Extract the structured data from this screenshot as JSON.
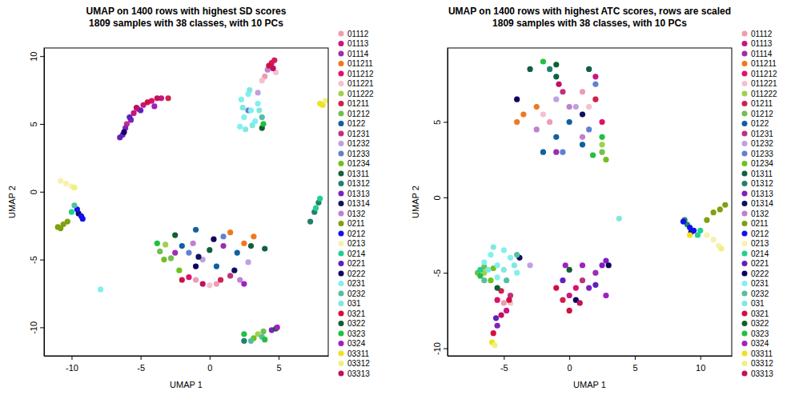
{
  "chart_data": [
    {
      "type": "scatter",
      "title": [
        "UMAP on 1400 rows with highest SD scores",
        "1809 samples with 38 classes, with 10 PCs"
      ],
      "x_label": "UMAP 1",
      "y_label": "UMAP 2",
      "xlim": [
        -12,
        8.6
      ],
      "ylim": [
        -12.1,
        10.6
      ],
      "xticks": [
        -10,
        -5,
        0,
        5
      ],
      "yticks": [
        -10,
        -5,
        0,
        5,
        10
      ],
      "legend": "right",
      "series": [
        {
          "name": "01112",
          "color": "#ef9bb0",
          "x": [
            -1,
            0.5,
            4
          ],
          "y": [
            -6.5,
            -6.8,
            8.5
          ]
        },
        {
          "name": "01113",
          "color": "#c71585",
          "x": [
            -5.5,
            -4.8,
            -3.5
          ],
          "y": [
            5.8,
            6.4,
            6.9
          ]
        },
        {
          "name": "01114",
          "color": "#9b2fae",
          "x": [
            -2.5,
            1
          ],
          "y": [
            -4.5,
            -4
          ]
        },
        {
          "name": "011211",
          "color": "#f07820",
          "x": [
            2.5,
            3.2,
            1.5
          ],
          "y": [
            -3.8,
            -3.3,
            -3
          ]
        },
        {
          "name": "011212",
          "color": "#e0106a",
          "x": [
            -4.2,
            4.5,
            -1.5
          ],
          "y": [
            6.7,
            9.5,
            -6.3
          ]
        },
        {
          "name": "011221",
          "color": "#f5c0d0",
          "x": [
            3.8,
            0,
            4.8
          ],
          "y": [
            8.2,
            -6.9,
            8.8
          ]
        },
        {
          "name": "011222",
          "color": "#a0d050",
          "x": [
            3.5,
            -3.2
          ],
          "y": [
            -10.5,
            -3.9
          ]
        },
        {
          "name": "01211",
          "color": "#d02050",
          "x": [
            -3,
            4.7,
            0.8
          ],
          "y": [
            6.9,
            9.7,
            -6.5
          ]
        },
        {
          "name": "01212",
          "color": "#70c050",
          "x": [
            -3.6,
            -2.8,
            3.9
          ],
          "y": [
            -4.4,
            -4.9,
            -10.3
          ]
        },
        {
          "name": "0122",
          "color": "#1060a0",
          "x": [
            -1,
            -2,
            0.5,
            2
          ],
          "y": [
            -2.8,
            -4,
            -5.5,
            -4.5
          ]
        },
        {
          "name": "01231",
          "color": "#c03080",
          "x": [
            -6,
            -5.2,
            1.5
          ],
          "y": [
            5,
            6.1,
            -6.2
          ]
        },
        {
          "name": "01232",
          "color": "#c0a0e0",
          "x": [
            3.5,
            -0.5,
            2.8
          ],
          "y": [
            7.3,
            -5,
            -5.2
          ]
        },
        {
          "name": "01233",
          "color": "#6080d0",
          "x": [
            1,
            2.8,
            -1.5
          ],
          "y": [
            -3.3,
            6,
            -4.5
          ]
        },
        {
          "name": "01234",
          "color": "#70c020",
          "x": [
            -3.3,
            3.2,
            -2.2
          ],
          "y": [
            -5,
            -10.8,
            -5.8
          ]
        },
        {
          "name": "01311",
          "color": "#106040",
          "x": [
            4,
            3,
            0
          ],
          "y": [
            -4.2,
            -4,
            -4.3
          ]
        },
        {
          "name": "01312",
          "color": "#208070",
          "x": [
            7.6,
            7.9,
            2.5,
            7.3
          ],
          "y": [
            -1.5,
            -0.8,
            -11,
            -2.2
          ]
        },
        {
          "name": "01313",
          "color": "#8020c0",
          "x": [
            -6.3,
            -6.1,
            4.5,
            -5.7
          ],
          "y": [
            4.2,
            4.7,
            -10.2,
            5.3
          ]
        },
        {
          "name": "01314",
          "color": "#101060",
          "x": [
            -9.5,
            -0.8,
            1.8
          ],
          "y": [
            -1.6,
            -4.8,
            -5.8
          ]
        },
        {
          "name": "0132",
          "color": "#c080d0",
          "x": [
            4.2,
            2.2,
            -1.2
          ],
          "y": [
            9,
            -6.5,
            -3.8
          ]
        },
        {
          "name": "0211",
          "color": "#80a010",
          "x": [
            -11,
            -10.6,
            -10.3,
            -10.8
          ],
          "y": [
            -2.6,
            -2.4,
            -2.2,
            -2.7
          ]
        },
        {
          "name": "0212",
          "color": "#1010f0",
          "x": [
            -9.3,
            -9.6,
            -9.2
          ],
          "y": [
            -1.8,
            -1.3,
            -2
          ]
        },
        {
          "name": "0213",
          "color": "#f8f0b0",
          "x": [
            -10.8,
            -10.4,
            -10
          ],
          "y": [
            0.8,
            0.6,
            0.4
          ]
        },
        {
          "name": "0214",
          "color": "#20d090",
          "x": [
            -10,
            7.7,
            8
          ],
          "y": [
            -1.5,
            -1.2,
            -0.5
          ]
        },
        {
          "name": "0221",
          "color": "#6020c0",
          "x": [
            -6.5,
            -5.8,
            -5
          ],
          "y": [
            4,
            5.5,
            6
          ]
        },
        {
          "name": "0222",
          "color": "#100060",
          "x": [
            -6.2,
            -1,
            0.3
          ],
          "y": [
            4.4,
            -5.5,
            -3.5
          ]
        },
        {
          "name": "0231",
          "color": "#80f0f0",
          "x": [
            2.2,
            2.5,
            3,
            2.3,
            3.3,
            2.8,
            -7.9,
            3.5
          ],
          "y": [
            4.8,
            5.5,
            6,
            6.8,
            5.2,
            7.2,
            -7.2,
            6.5
          ]
        },
        {
          "name": "0232",
          "color": "#50c0a0",
          "x": [
            3,
            3.8,
            -9.8,
            3.8
          ],
          "y": [
            -11,
            -10.7,
            -1,
            5.5
          ]
        },
        {
          "name": "031",
          "color": "#80e8e0",
          "x": [
            2.6,
            3.1,
            2.4,
            3.6,
            2.9
          ],
          "y": [
            4.6,
            4.9,
            6.2,
            6,
            7.5
          ]
        },
        {
          "name": "0321",
          "color": "#d01040",
          "x": [
            -4.5,
            4.3,
            -2
          ],
          "y": [
            6.6,
            9.3,
            -6.5
          ]
        },
        {
          "name": "0322",
          "color": "#106030",
          "x": [
            -2.5,
            4.8,
            3.8
          ],
          "y": [
            -3.2,
            -10.1,
            4.7
          ]
        },
        {
          "name": "0323",
          "color": "#20c040",
          "x": [
            3.9,
            2.5,
            4,
            -3.8
          ],
          "y": [
            5,
            -10.5,
            -10.9,
            -3.8
          ]
        },
        {
          "name": "0324",
          "color": "#a020c0",
          "x": [
            -4,
            4.9,
            2.5
          ],
          "y": [
            6.3,
            -10,
            -6.8
          ]
        },
        {
          "name": "03311",
          "color": "#f0e020",
          "x": [
            8.2,
            8
          ],
          "y": [
            6.4,
            6.5
          ]
        },
        {
          "name": "03312",
          "color": "#f0f080",
          "x": [
            8.4,
            -9.8
          ],
          "y": [
            6.7,
            0.3
          ]
        },
        {
          "name": "03313",
          "color": "#c01060",
          "x": [
            -5.3,
            -3.8,
            4.6,
            -0.5
          ],
          "y": [
            6.2,
            6.9,
            9.1,
            -6.8
          ]
        }
      ]
    },
    {
      "type": "scatter",
      "title": [
        "UMAP on 1400 rows with highest ATC scores, rows are scaled",
        "1809 samples with 38 classes, with 10 PCs"
      ],
      "x_label": "UMAP 1",
      "y_label": "UMAP 2",
      "xlim": [
        -9.3,
        12.4
      ],
      "ylim": [
        -10.5,
        9.9
      ],
      "xticks": [
        -5,
        0,
        5,
        10
      ],
      "yticks": [
        -10,
        -5,
        0,
        5
      ],
      "legend": "right",
      "series": [
        {
          "name": "01112",
          "color": "#ef9bb0",
          "x": [
            -5,
            -1.5,
            1
          ],
          "y": [
            -7,
            5,
            7
          ]
        },
        {
          "name": "01113",
          "color": "#c71585",
          "x": [
            0,
            -4.8,
            2
          ],
          "y": [
            -6.5,
            -7.5,
            8
          ]
        },
        {
          "name": "01114",
          "color": "#9b2fae",
          "x": [
            2,
            -1
          ],
          "y": [
            -5,
            3
          ]
        },
        {
          "name": "011211",
          "color": "#f07820",
          "x": [
            -3.5,
            -4,
            -2.5
          ],
          "y": [
            5.5,
            5,
            6
          ]
        },
        {
          "name": "011212",
          "color": "#e0106a",
          "x": [
            -5.5,
            0.5,
            2.5
          ],
          "y": [
            -6.8,
            -6,
            5
          ]
        },
        {
          "name": "011221",
          "color": "#f5c0d0",
          "x": [
            -2,
            -4.5,
            1.5
          ],
          "y": [
            5.5,
            -7,
            6
          ]
        },
        {
          "name": "011222",
          "color": "#a0d050",
          "x": [
            2.5,
            -6.5
          ],
          "y": [
            3.5,
            -5
          ]
        },
        {
          "name": "01211",
          "color": "#d02050",
          "x": [
            -0.5,
            -5.2,
            2
          ],
          "y": [
            -6.8,
            -6.2,
            6.5
          ]
        },
        {
          "name": "01212",
          "color": "#70c050",
          "x": [
            -7,
            -6.5,
            2.5
          ],
          "y": [
            -5,
            -4.6,
            3
          ]
        },
        {
          "name": "0122",
          "color": "#1060a0",
          "x": [
            -1,
            0,
            1,
            -2
          ],
          "y": [
            4,
            5,
            3.5,
            3
          ]
        },
        {
          "name": "01231",
          "color": "#c03080",
          "x": [
            1,
            -0.5,
            -4.5
          ],
          "y": [
            -5.5,
            7,
            -6.5
          ]
        },
        {
          "name": "01232",
          "color": "#c0a0e0",
          "x": [
            0.5,
            -1,
            -3
          ],
          "y": [
            6,
            6.5,
            -4.5
          ]
        },
        {
          "name": "01233",
          "color": "#6080d0",
          "x": [
            1.5,
            -0.5,
            2
          ],
          "y": [
            4.5,
            3,
            7.5
          ]
        },
        {
          "name": "01234",
          "color": "#70c020",
          "x": [
            2.8,
            -6,
            -5.8
          ],
          "y": [
            2.5,
            -5.5,
            -4.7
          ]
        },
        {
          "name": "01311",
          "color": "#106040",
          "x": [
            -3,
            -1,
            1.5
          ],
          "y": [
            8.5,
            8,
            8.5
          ]
        },
        {
          "name": "01312",
          "color": "#208070",
          "x": [
            -1.5,
            9,
            8.8
          ],
          "y": [
            8.5,
            -1.8,
            -1.5
          ]
        },
        {
          "name": "01313",
          "color": "#8020c0",
          "x": [
            2.5,
            2.8,
            -5.5,
            1.5
          ],
          "y": [
            -4.5,
            -4.2,
            -8.5,
            -6
          ]
        },
        {
          "name": "01314",
          "color": "#101060",
          "x": [
            -3.8,
            1,
            9.3
          ],
          "y": [
            -4,
            5.5,
            -2.3
          ]
        },
        {
          "name": "0132",
          "color": "#c080d0",
          "x": [
            0,
            -2.5,
            1
          ],
          "y": [
            6,
            4.5,
            4
          ]
        },
        {
          "name": "0211",
          "color": "#80a010",
          "x": [
            10.5,
            11,
            11.5,
            11.9
          ],
          "y": [
            -1.5,
            -1,
            -0.8,
            -0.5
          ]
        },
        {
          "name": "0212",
          "color": "#1010f0",
          "x": [
            8.7,
            9.2,
            9.5
          ],
          "y": [
            -1.6,
            -2,
            -2.2
          ]
        },
        {
          "name": "0213",
          "color": "#f8f0b0",
          "x": [
            10.5,
            11,
            11.4
          ],
          "y": [
            -2.5,
            -2.8,
            -3.2
          ]
        },
        {
          "name": "0214",
          "color": "#20d090",
          "x": [
            9.8,
            -6.8,
            10
          ],
          "y": [
            -2.5,
            -4.8,
            -2.2
          ]
        },
        {
          "name": "0221",
          "color": "#6020c0",
          "x": [
            2,
            -0.5,
            -5.6
          ],
          "y": [
            -5.8,
            -5.5,
            -8
          ]
        },
        {
          "name": "0222",
          "color": "#100060",
          "x": [
            -4,
            0.5,
            3
          ],
          "y": [
            6.5,
            -6.8,
            -4.5
          ]
        },
        {
          "name": "0231",
          "color": "#80f0f0",
          "x": [
            -6,
            -5,
            -5.5,
            -4.5,
            -4,
            -6.5,
            -5.5
          ],
          "y": [
            -3.8,
            -3.5,
            -4.5,
            -4,
            -5,
            -4.3,
            -5.3
          ]
        },
        {
          "name": "0232",
          "color": "#50c0a0",
          "x": [
            -6.5,
            -4.8,
            -4
          ],
          "y": [
            -5.5,
            -5.5,
            -3.8
          ]
        },
        {
          "name": "031",
          "color": "#80e8e0",
          "x": [
            -5.8,
            -4.2,
            -6.2,
            3.8,
            -5
          ],
          "y": [
            -3.3,
            -4.5,
            -4.8,
            -1.4,
            -4.8
          ]
        },
        {
          "name": "0321",
          "color": "#d01040",
          "x": [
            -4.6,
            -1,
            0,
            -5.8
          ],
          "y": [
            -6.8,
            -6,
            -7.5,
            -9
          ]
        },
        {
          "name": "0322",
          "color": "#106030",
          "x": [
            -1,
            -5.5,
            0
          ],
          "y": [
            8.8,
            -6,
            -4.8
          ]
        },
        {
          "name": "0323",
          "color": "#20c040",
          "x": [
            2.5,
            1.8,
            -6.8,
            -2
          ],
          "y": [
            4,
            2.8,
            -5.2,
            9
          ]
        },
        {
          "name": "0324",
          "color": "#a020c0",
          "x": [
            1,
            -0.3,
            2.8
          ],
          "y": [
            -4.5,
            -4.5,
            -6.5
          ]
        },
        {
          "name": "03311",
          "color": "#f0e020",
          "x": [
            -5.9,
            9.2
          ],
          "y": [
            -9.6,
            -2.5
          ]
        },
        {
          "name": "03312",
          "color": "#f0f080",
          "x": [
            -5.7,
            11.6
          ],
          "y": [
            -9.8,
            -3.4
          ]
        },
        {
          "name": "03313",
          "color": "#c01060",
          "x": [
            -5.2,
            0.8,
            -0.8
          ],
          "y": [
            -7.8,
            -7,
            7.5
          ]
        }
      ]
    }
  ]
}
